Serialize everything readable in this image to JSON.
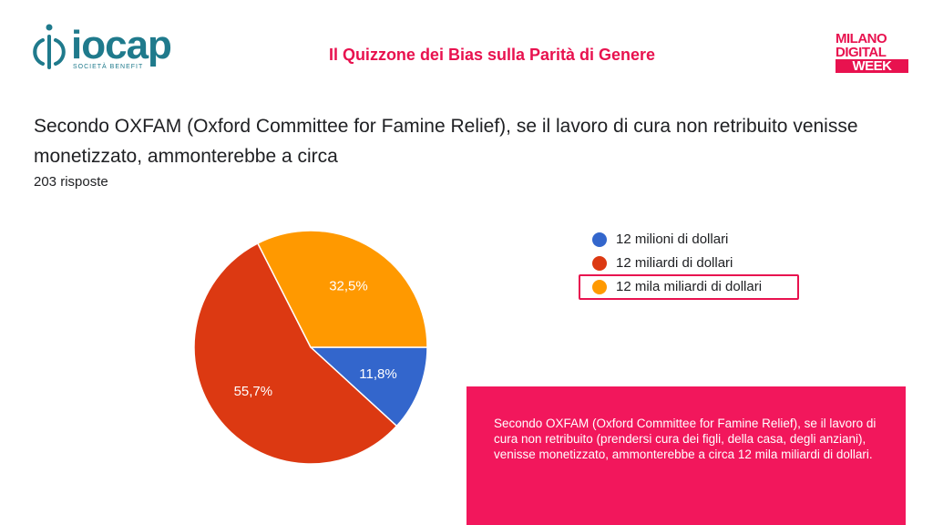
{
  "logo": {
    "name": "iocap",
    "subtitle": "SOCIETÀ BENEFIT"
  },
  "header": {
    "title": "Il Quizzone dei Bias sulla Parità di Genere"
  },
  "badge": {
    "lines": [
      "MILANO",
      "DIGITAL",
      "WEEK"
    ]
  },
  "question": {
    "text": "Secondo OXFAM (Oxford Committee for Famine Relief), se il lavoro di cura non retribuito venisse monetizzato, ammonterebbe a circa",
    "responses": "203 risposte"
  },
  "chart_data": {
    "type": "pie",
    "categories": [
      "12 milioni di dollari",
      "12 miliardi di dollari",
      "12 mila miliardi di dollari"
    ],
    "values": [
      11.8,
      55.7,
      32.5
    ],
    "labels": [
      "11,8%",
      "55,7%",
      "32,5%"
    ],
    "colors": [
      "#3366cc",
      "#dc3912",
      "#ff9900"
    ],
    "legend_position": "right",
    "highlighted_category": "12 mila miliardi di dollari"
  },
  "info": {
    "text": "Secondo OXFAM (Oxford Committee for Famine Relief), se il lavoro di cura non retribuito (prendersi cura dei figli, della casa, degli anziani), venisse monetizzato, ammonterebbe a circa 12 mila miliardi di dollari.",
    "background": "#f2175c"
  },
  "brand": {
    "accent": "#e8124f",
    "logo_color": "#1f7a8c"
  }
}
